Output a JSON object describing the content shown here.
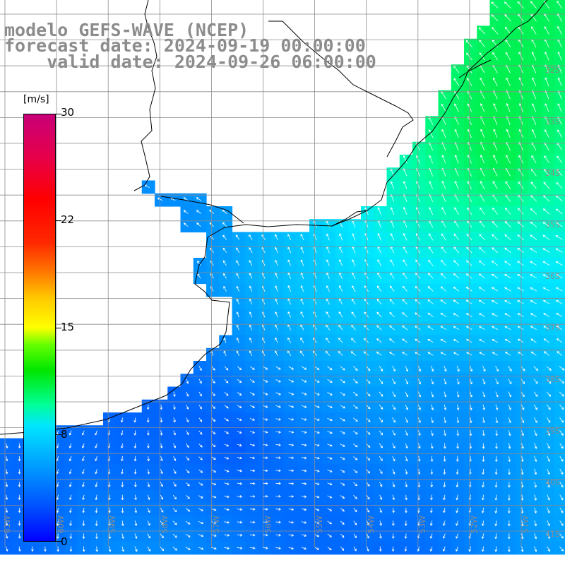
{
  "title": {
    "line1": "modelo GEFS-WAVE (NCEP)",
    "line2": "forecast date: 2024-09-19 00:00:00",
    "line3": "    valid date: 2024-09-26 06:00:00"
  },
  "colorbar": {
    "unit": "[m/s]",
    "ticks": [
      "30",
      "22",
      "15",
      "8",
      "0"
    ],
    "colors": {
      "low": "#0000ff",
      "mid": "#00ff00",
      "high": "#c80078"
    }
  },
  "map": {
    "lon_labels": [
      "61W",
      "60W",
      "59W",
      "58W",
      "57W",
      "56W",
      "55W",
      "54W",
      "53W",
      "52W",
      "51W"
    ],
    "lat_labels": [
      "32S",
      "33S",
      "34S",
      "35S",
      "36S",
      "37S",
      "38S",
      "39S",
      "40S",
      "41S"
    ],
    "colors": {
      "land": "#ffffff",
      "coast": "#000000",
      "grid": "#8c8c8c",
      "arrow": "#ffffff"
    }
  }
}
